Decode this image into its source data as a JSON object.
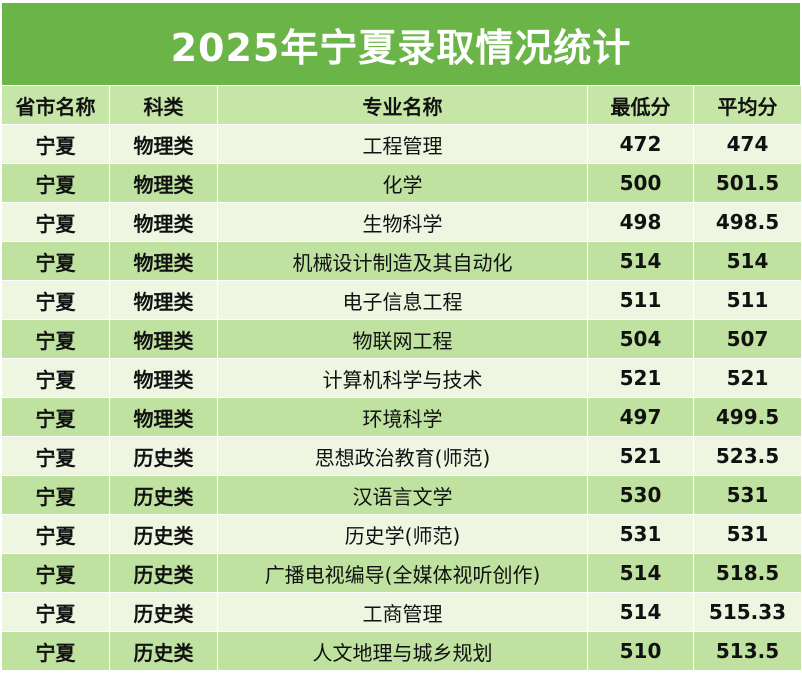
{
  "title": "2025年宁夏录取情况统计",
  "columns": [
    "省市名称",
    "科类",
    "专业名称",
    "最低分",
    "平均分"
  ],
  "rows": [
    [
      "宁夏",
      "物理类",
      "工程管理",
      "472",
      "474"
    ],
    [
      "宁夏",
      "物理类",
      "化学",
      "500",
      "501.5"
    ],
    [
      "宁夏",
      "物理类",
      "生物科学",
      "498",
      "498.5"
    ],
    [
      "宁夏",
      "物理类",
      "机械设计制造及其自动化",
      "514",
      "514"
    ],
    [
      "宁夏",
      "物理类",
      "电子信息工程",
      "511",
      "511"
    ],
    [
      "宁夏",
      "物理类",
      "物联网工程",
      "504",
      "507"
    ],
    [
      "宁夏",
      "物理类",
      "计算机科学与技术",
      "521",
      "521"
    ],
    [
      "宁夏",
      "物理类",
      "环境科学",
      "497",
      "499.5"
    ],
    [
      "宁夏",
      "历史类",
      "思想政治教育(师范)",
      "521",
      "523.5"
    ],
    [
      "宁夏",
      "历史类",
      "汉语言文学",
      "530",
      "531"
    ],
    [
      "宁夏",
      "历史类",
      "历史学(师范)",
      "531",
      "531"
    ],
    [
      "宁夏",
      "历史类",
      "广播电视编导(全媒体视听创作)",
      "514",
      "518.5"
    ],
    [
      "宁夏",
      "历史类",
      "工商管理",
      "514",
      "515.33"
    ],
    [
      "宁夏",
      "历史类",
      "人文地理与城乡规划",
      "510",
      "513.5"
    ]
  ],
  "colors": {
    "title_bg": "#6bb548",
    "header_bg": "#c5e6a7",
    "row_light": "#eef6e2",
    "row_dark": "#bfe2a0"
  }
}
